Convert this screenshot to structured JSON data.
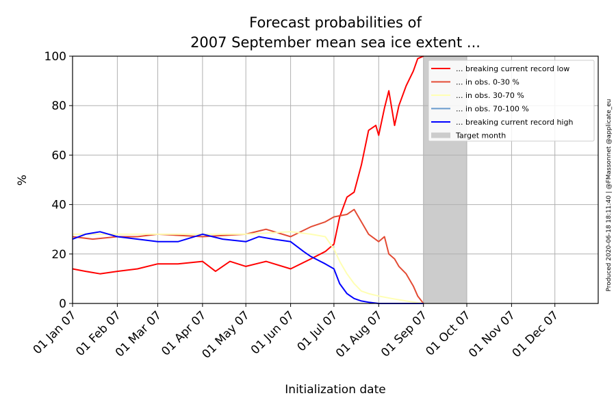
{
  "chart_data": {
    "type": "line",
    "title_lines": [
      "Forecast probabilities of",
      "2007 September mean sea ice extent ..."
    ],
    "xlabel": "Initialization date",
    "ylabel": "%",
    "ylim": [
      0,
      100
    ],
    "xlim": [
      "2007-01-01",
      "2007-12-31"
    ],
    "yticks": [
      0,
      20,
      40,
      60,
      80,
      100
    ],
    "xticks": [
      {
        "date": "2007-01-01",
        "label": "01 Jan 07"
      },
      {
        "date": "2007-02-01",
        "label": "01 Feb 07"
      },
      {
        "date": "2007-03-01",
        "label": "01 Mar 07"
      },
      {
        "date": "2007-04-01",
        "label": "01 Apr 07"
      },
      {
        "date": "2007-05-01",
        "label": "01 May 07"
      },
      {
        "date": "2007-06-01",
        "label": "01 Jun 07"
      },
      {
        "date": "2007-07-01",
        "label": "01 Jul 07"
      },
      {
        "date": "2007-08-01",
        "label": "01 Aug 07"
      },
      {
        "date": "2007-09-01",
        "label": "01 Sep 07"
      },
      {
        "date": "2007-10-01",
        "label": "01 Oct 07"
      },
      {
        "date": "2007-11-01",
        "label": "01 Nov 07"
      },
      {
        "date": "2007-12-01",
        "label": "01 Dec 07"
      }
    ],
    "grid": true,
    "legend_position": "top-right",
    "target_month": {
      "label": "Target month",
      "start": "2007-09-01",
      "end": "2007-10-01",
      "color": "#cccccc"
    },
    "credit": "Produced 2020-06-18 18:11:40 | @FMassonnet @applicate_eu",
    "series": [
      {
        "name": "... breaking current record low",
        "color": "#ff0000",
        "points": [
          [
            "2007-01-01",
            14
          ],
          [
            "2007-01-10",
            13
          ],
          [
            "2007-01-20",
            12
          ],
          [
            "2007-02-01",
            13
          ],
          [
            "2007-02-15",
            14
          ],
          [
            "2007-03-01",
            16
          ],
          [
            "2007-03-15",
            16
          ],
          [
            "2007-04-01",
            17
          ],
          [
            "2007-04-10",
            13
          ],
          [
            "2007-04-20",
            17
          ],
          [
            "2007-05-01",
            15
          ],
          [
            "2007-05-15",
            17
          ],
          [
            "2007-06-01",
            14
          ],
          [
            "2007-06-15",
            18
          ],
          [
            "2007-06-25",
            21
          ],
          [
            "2007-07-01",
            24
          ],
          [
            "2007-07-05",
            35
          ],
          [
            "2007-07-10",
            43
          ],
          [
            "2007-07-15",
            45
          ],
          [
            "2007-07-20",
            56
          ],
          [
            "2007-07-25",
            70
          ],
          [
            "2007-07-30",
            72
          ],
          [
            "2007-08-01",
            68
          ],
          [
            "2007-08-05",
            79
          ],
          [
            "2007-08-08",
            86
          ],
          [
            "2007-08-12",
            72
          ],
          [
            "2007-08-15",
            80
          ],
          [
            "2007-08-20",
            88
          ],
          [
            "2007-08-25",
            94
          ],
          [
            "2007-08-28",
            99
          ],
          [
            "2007-09-01",
            100
          ]
        ]
      },
      {
        "name": "... in obs. 0-30 %",
        "color": "#e34a33",
        "points": [
          [
            "2007-01-01",
            27
          ],
          [
            "2007-01-15",
            26
          ],
          [
            "2007-02-01",
            27
          ],
          [
            "2007-02-15",
            27
          ],
          [
            "2007-03-01",
            28
          ],
          [
            "2007-04-01",
            27
          ],
          [
            "2007-05-01",
            28
          ],
          [
            "2007-05-15",
            30
          ],
          [
            "2007-06-01",
            27
          ],
          [
            "2007-06-15",
            31
          ],
          [
            "2007-06-25",
            33
          ],
          [
            "2007-07-01",
            35
          ],
          [
            "2007-07-10",
            36
          ],
          [
            "2007-07-15",
            38
          ],
          [
            "2007-07-20",
            33
          ],
          [
            "2007-07-25",
            28
          ],
          [
            "2007-08-01",
            25
          ],
          [
            "2007-08-05",
            27
          ],
          [
            "2007-08-08",
            20
          ],
          [
            "2007-08-12",
            18
          ],
          [
            "2007-08-15",
            15
          ],
          [
            "2007-08-20",
            12
          ],
          [
            "2007-08-25",
            7
          ],
          [
            "2007-08-28",
            3
          ],
          [
            "2007-09-01",
            0
          ]
        ]
      },
      {
        "name": "... in obs. 30-70 %",
        "color": "#ffffb3",
        "points": [
          [
            "2007-01-01",
            28
          ],
          [
            "2007-02-01",
            28
          ],
          [
            "2007-03-01",
            28
          ],
          [
            "2007-04-01",
            28
          ],
          [
            "2007-05-01",
            28
          ],
          [
            "2007-06-01",
            29
          ],
          [
            "2007-06-15",
            28
          ],
          [
            "2007-06-25",
            27
          ],
          [
            "2007-07-01",
            22
          ],
          [
            "2007-07-05",
            17
          ],
          [
            "2007-07-10",
            12
          ],
          [
            "2007-07-15",
            8
          ],
          [
            "2007-07-20",
            5
          ],
          [
            "2007-07-25",
            4
          ],
          [
            "2007-08-01",
            3
          ],
          [
            "2007-08-10",
            2
          ],
          [
            "2007-08-20",
            1
          ],
          [
            "2007-09-01",
            0
          ]
        ]
      },
      {
        "name": "... in obs. 70-100 %",
        "color": "#6699cc",
        "points": []
      },
      {
        "name": "... breaking current record high",
        "color": "#0000ff",
        "points": [
          [
            "2007-01-01",
            26
          ],
          [
            "2007-01-10",
            28
          ],
          [
            "2007-01-20",
            29
          ],
          [
            "2007-02-01",
            27
          ],
          [
            "2007-02-15",
            26
          ],
          [
            "2007-03-01",
            25
          ],
          [
            "2007-03-15",
            25
          ],
          [
            "2007-04-01",
            28
          ],
          [
            "2007-04-15",
            26
          ],
          [
            "2007-05-01",
            25
          ],
          [
            "2007-05-10",
            27
          ],
          [
            "2007-05-20",
            26
          ],
          [
            "2007-06-01",
            25
          ],
          [
            "2007-06-10",
            21
          ],
          [
            "2007-06-15",
            19
          ],
          [
            "2007-06-25",
            16
          ],
          [
            "2007-07-01",
            14
          ],
          [
            "2007-07-05",
            8
          ],
          [
            "2007-07-10",
            4
          ],
          [
            "2007-07-15",
            2
          ],
          [
            "2007-07-20",
            1
          ],
          [
            "2007-07-25",
            0.5
          ],
          [
            "2007-08-01",
            0
          ],
          [
            "2007-09-01",
            0
          ]
        ]
      }
    ]
  }
}
